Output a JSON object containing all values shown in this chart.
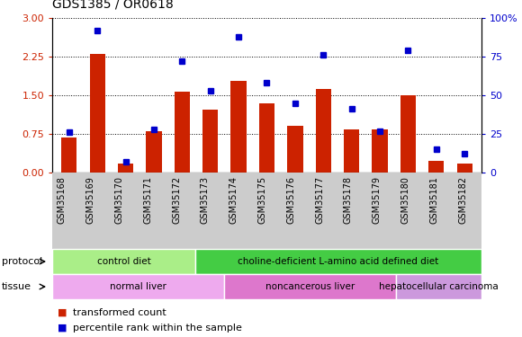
{
  "title": "GDS1385 / OR0618",
  "samples": [
    "GSM35168",
    "GSM35169",
    "GSM35170",
    "GSM35171",
    "GSM35172",
    "GSM35173",
    "GSM35174",
    "GSM35175",
    "GSM35176",
    "GSM35177",
    "GSM35178",
    "GSM35179",
    "GSM35180",
    "GSM35181",
    "GSM35182"
  ],
  "transformed_count": [
    0.68,
    2.3,
    0.18,
    0.8,
    1.57,
    1.22,
    1.78,
    1.35,
    0.9,
    1.63,
    0.84,
    0.84,
    1.5,
    0.22,
    0.18
  ],
  "percentile_rank": [
    26,
    92,
    7,
    28,
    72,
    53,
    88,
    58,
    45,
    76,
    41,
    27,
    79,
    15,
    12
  ],
  "bar_color": "#cc2200",
  "dot_color": "#0000cc",
  "ylim_left": [
    0,
    3
  ],
  "ylim_right": [
    0,
    100
  ],
  "yticks_left": [
    0,
    0.75,
    1.5,
    2.25,
    3
  ],
  "yticks_right": [
    0,
    25,
    50,
    75,
    100
  ],
  "protocol_groups": [
    {
      "label": "control diet",
      "start": 0,
      "end": 4,
      "color": "#aaee88"
    },
    {
      "label": "choline-deficient L-amino acid defined diet",
      "start": 5,
      "end": 14,
      "color": "#44cc44"
    }
  ],
  "tissue_groups": [
    {
      "label": "normal liver",
      "start": 0,
      "end": 5,
      "color": "#eeaaee"
    },
    {
      "label": "noncancerous liver",
      "start": 6,
      "end": 11,
      "color": "#dd77cc"
    },
    {
      "label": "hepatocellular carcinoma",
      "start": 12,
      "end": 14,
      "color": "#cc99dd"
    }
  ],
  "legend_items": [
    {
      "label": "transformed count",
      "color": "#cc2200"
    },
    {
      "label": "percentile rank within the sample",
      "color": "#0000cc"
    }
  ],
  "protocol_label": "protocol",
  "tissue_label": "tissue"
}
